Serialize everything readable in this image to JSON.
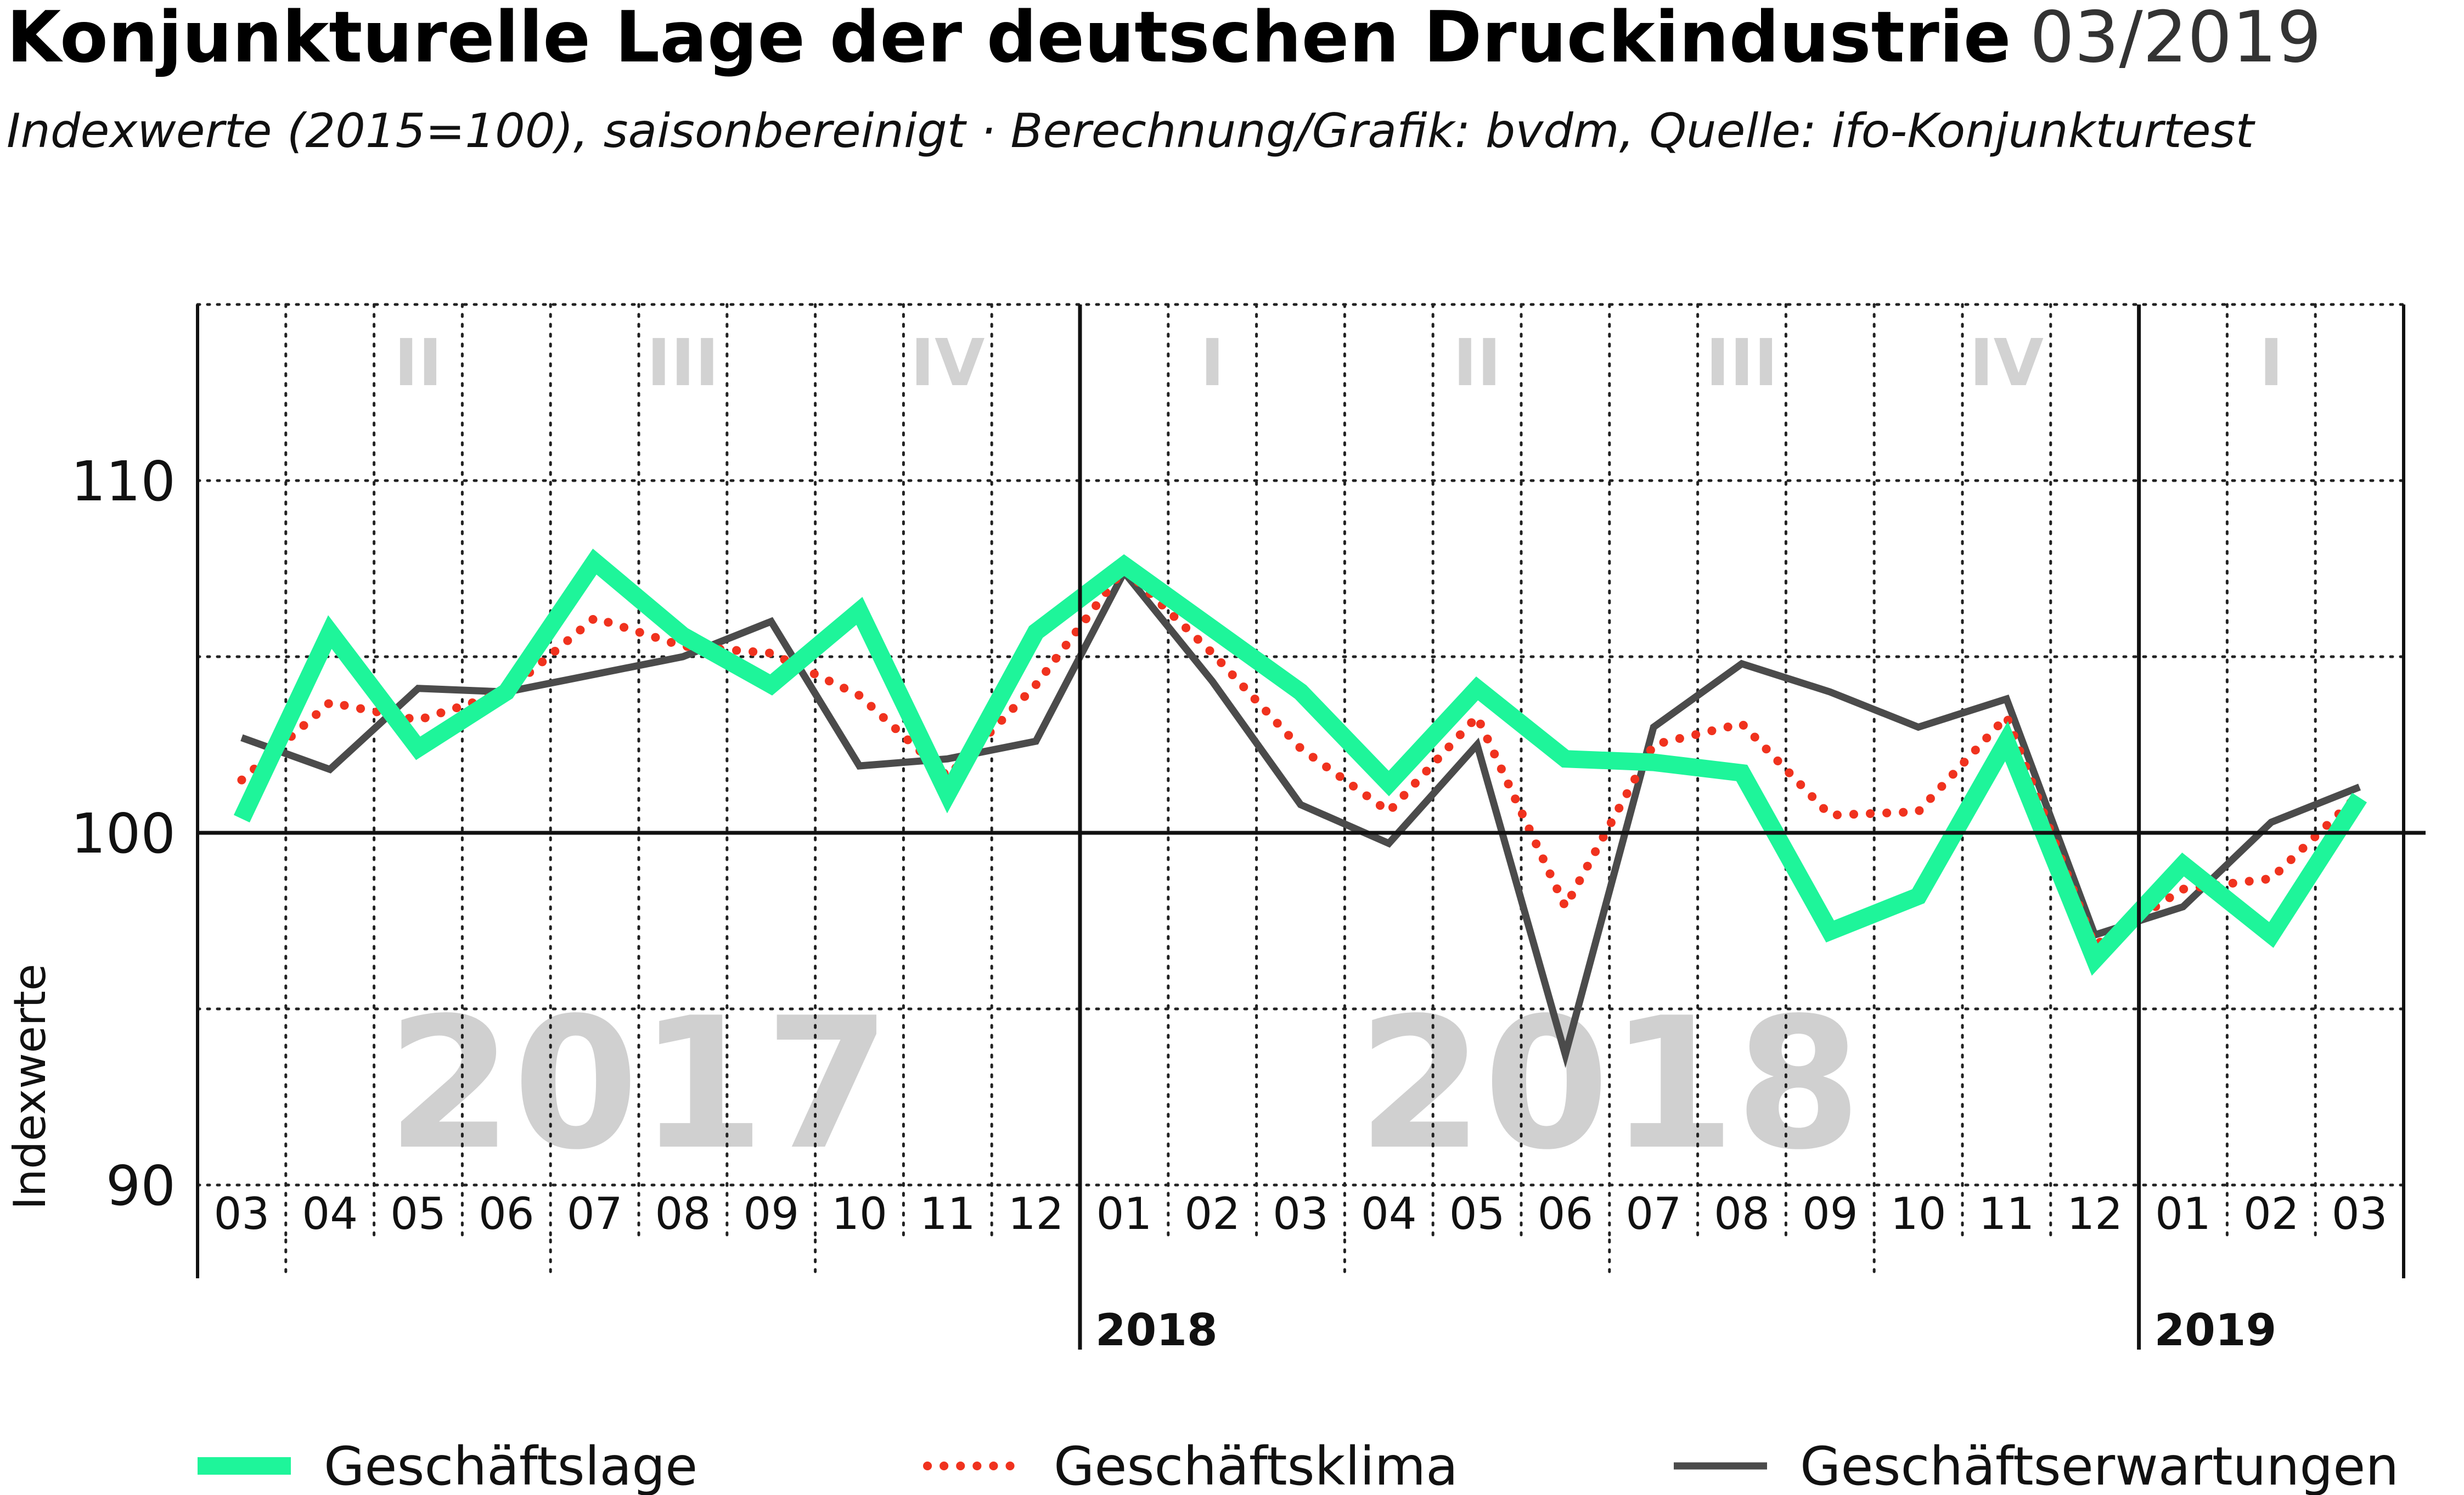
{
  "title": "Konjunkturelle Lage der deutschen Druckindustrie",
  "title_date": "03/2019",
  "subtitle": "Indexwerte (2015=100), saisonbereinigt · Berechnung/Grafik: bvdm, Quelle: ifo-Konjunkturtest",
  "colors": {
    "geschaeftslage": "#1ef59a",
    "geschaeftsklima": "#f0321e",
    "geschaeftserwartungen": "#4b4b4b",
    "background_text": "#d0d0d0"
  },
  "chart_data": {
    "type": "line",
    "title": "Konjunkturelle Lage der deutschen Druckindustrie",
    "subtitle": "Indexwerte (2015=100), saisonbereinigt · Berechnung/Grafik: bvdm, Quelle: ifo-Konjunkturtest",
    "xlabel": "",
    "ylabel": "Indexwerte",
    "ylim": [
      90,
      115
    ],
    "yticks": [
      90,
      100,
      110
    ],
    "reference_line": 100,
    "grid": true,
    "legend_position": "bottom",
    "categories": [
      "03",
      "04",
      "05",
      "06",
      "07",
      "08",
      "09",
      "10",
      "11",
      "12",
      "01",
      "02",
      "03",
      "04",
      "05",
      "06",
      "07",
      "08",
      "09",
      "10",
      "11",
      "12",
      "01",
      "02",
      "03"
    ],
    "quarters": [
      {
        "label": "II",
        "from": 1,
        "to": 3
      },
      {
        "label": "III",
        "from": 4,
        "to": 6
      },
      {
        "label": "IV",
        "from": 7,
        "to": 9
      },
      {
        "label": "I",
        "from": 10,
        "to": 12
      },
      {
        "label": "II",
        "from": 13,
        "to": 15
      },
      {
        "label": "III",
        "from": 16,
        "to": 18
      },
      {
        "label": "IV",
        "from": 19,
        "to": 21
      },
      {
        "label": "I",
        "from": 22,
        "to": 24
      }
    ],
    "year_background": [
      {
        "label": "2017",
        "from": 0,
        "to": 9
      },
      {
        "label": "2018",
        "from": 10,
        "to": 21
      }
    ],
    "year_markers": [
      {
        "label": "2018",
        "index": 10
      },
      {
        "label": "2019",
        "index": 22
      }
    ],
    "series": [
      {
        "name": "Geschäftslage",
        "style": "solid-thick",
        "values": [
          100.4,
          105.7,
          102.4,
          104.0,
          107.7,
          105.6,
          104.2,
          106.3,
          101.1,
          105.7,
          107.6,
          105.8,
          104.0,
          101.4,
          104.1,
          102.1,
          102.0,
          101.7,
          97.2,
          98.2,
          102.6,
          96.4,
          99.1,
          97.1,
          101.0
        ]
      },
      {
        "name": "Geschäftsklima",
        "style": "dotted",
        "values": [
          101.5,
          103.7,
          103.2,
          104.0,
          106.1,
          105.3,
          105.1,
          103.9,
          101.6,
          104.2,
          107.5,
          105.1,
          102.4,
          100.6,
          103.3,
          97.9,
          102.5,
          103.1,
          100.5,
          100.6,
          103.3,
          96.8,
          98.4,
          98.7,
          101.1
        ]
      },
      {
        "name": "Geschäftserwartungen",
        "style": "solid",
        "values": [
          102.7,
          101.8,
          104.1,
          104.0,
          104.5,
          105.0,
          106.0,
          101.9,
          102.1,
          102.6,
          107.4,
          104.3,
          100.8,
          99.7,
          102.5,
          93.7,
          103.0,
          104.8,
          104.0,
          103.0,
          103.8,
          97.1,
          97.9,
          100.3,
          101.3
        ]
      }
    ]
  }
}
